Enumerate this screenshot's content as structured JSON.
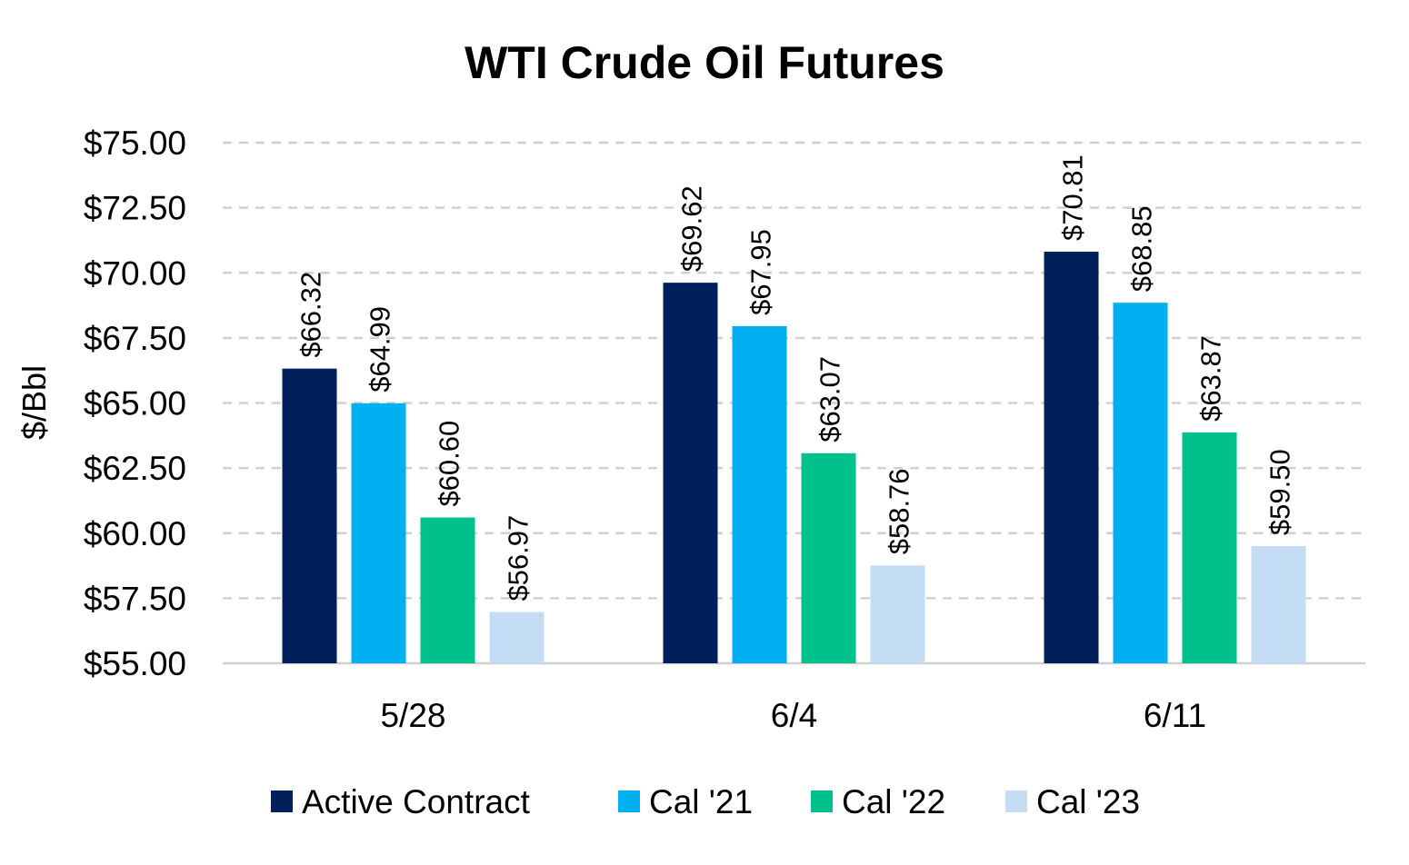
{
  "chart_data": {
    "type": "bar",
    "title": "WTI Crude Oil Futures",
    "xlabel": "",
    "ylabel": "$/Bbl",
    "ylim": [
      55,
      75
    ],
    "yticks": [
      55,
      57.5,
      60,
      62.5,
      65,
      67.5,
      70,
      72.5,
      75
    ],
    "ytick_labels": [
      "$55.00",
      "$57.50",
      "$60.00",
      "$62.50",
      "$65.00",
      "$67.50",
      "$70.00",
      "$72.50",
      "$75.00"
    ],
    "grid": true,
    "legend_position": "bottom",
    "categories": [
      "5/28",
      "6/4",
      "6/11"
    ],
    "series": [
      {
        "name": "Active Contract",
        "color": "#00205B",
        "values": [
          66.32,
          69.62,
          70.81
        ],
        "labels": [
          "$66.32",
          "$69.62",
          "$70.81"
        ]
      },
      {
        "name": "Cal '21",
        "color": "#00B0F0",
        "values": [
          64.99,
          67.95,
          68.85
        ],
        "labels": [
          "$64.99",
          "$67.95",
          "$68.85"
        ]
      },
      {
        "name": "Cal '22",
        "color": "#00C08B",
        "values": [
          60.6,
          63.07,
          63.87
        ],
        "labels": [
          "$60.60",
          "$63.07",
          "$63.87"
        ]
      },
      {
        "name": "Cal '23",
        "color": "#C5DCF5",
        "values": [
          56.97,
          58.76,
          59.5
        ],
        "labels": [
          "$56.97",
          "$58.76",
          "$59.50"
        ]
      }
    ]
  }
}
